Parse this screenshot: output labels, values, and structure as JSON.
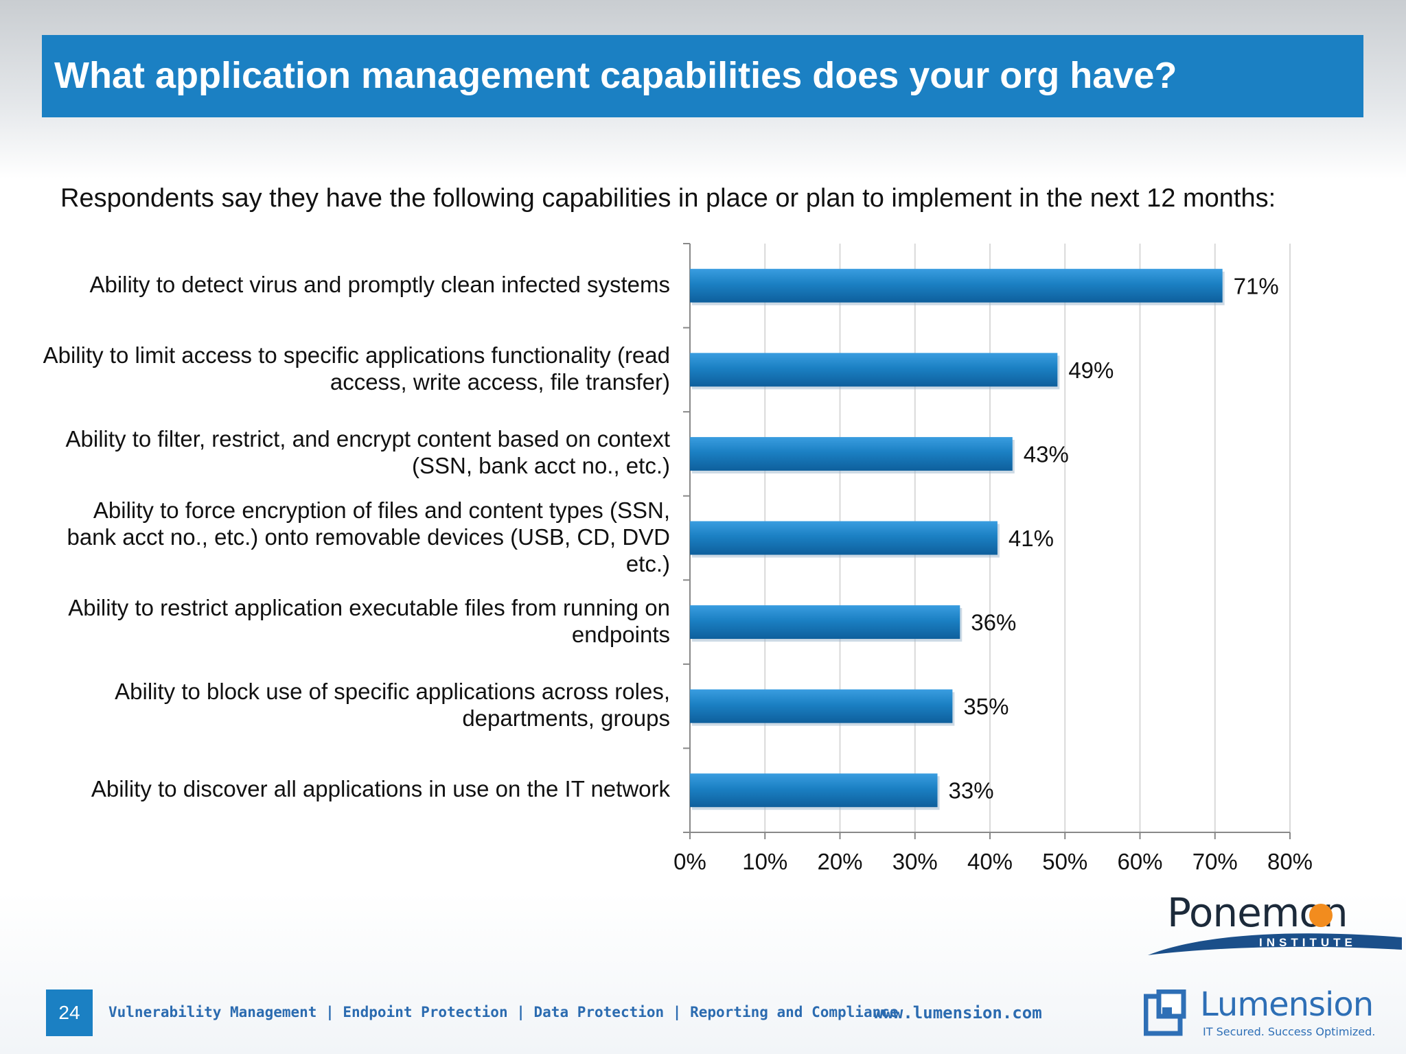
{
  "header": {
    "title": "What application management capabilities does your org have?"
  },
  "subtitle": "Respondents say they have the following capabilities in place or plan to implement in the next 12 months:",
  "chart_data": {
    "type": "bar",
    "orientation": "horizontal",
    "categories": [
      "Ability to detect virus and promptly clean infected systems",
      "Ability to limit access to specific applications functionality (read access, write access, file transfer)",
      "Ability to filter, restrict, and encrypt content based on context (SSN, bank acct no., etc.)",
      "Ability to force encryption of files and content types (SSN, bank acct no., etc.) onto removable devices (USB, CD, DVD etc.)",
      "Ability to restrict application executable files from running on endpoints",
      "Ability to block use of specific applications across roles, departments, groups",
      "Ability to discover all applications in use on the IT network"
    ],
    "values": [
      71,
      49,
      43,
      41,
      36,
      35,
      33
    ],
    "value_labels": [
      "71%",
      "49%",
      "43%",
      "41%",
      "36%",
      "35%",
      "33%"
    ],
    "xlim": [
      0,
      80
    ],
    "xticks": [
      0,
      10,
      20,
      30,
      40,
      50,
      60,
      70,
      80
    ],
    "xtick_labels": [
      "0%",
      "10%",
      "20%",
      "30%",
      "40%",
      "50%",
      "60%",
      "70%",
      "80%"
    ],
    "grid": "vertical",
    "legend": "none",
    "bar_color": "#1b80c3"
  },
  "footer": {
    "page_number": "24",
    "tags": "Vulnerability Management | Endpoint Protection | Data Protection | Reporting and Compliance",
    "url": "www.lumension.com"
  },
  "logos": {
    "ponemon": "Ponemon",
    "ponemon_sub": "INSTITUTE",
    "lumension": "Lumension",
    "lumension_tagline": "IT Secured. Success Optimized."
  }
}
